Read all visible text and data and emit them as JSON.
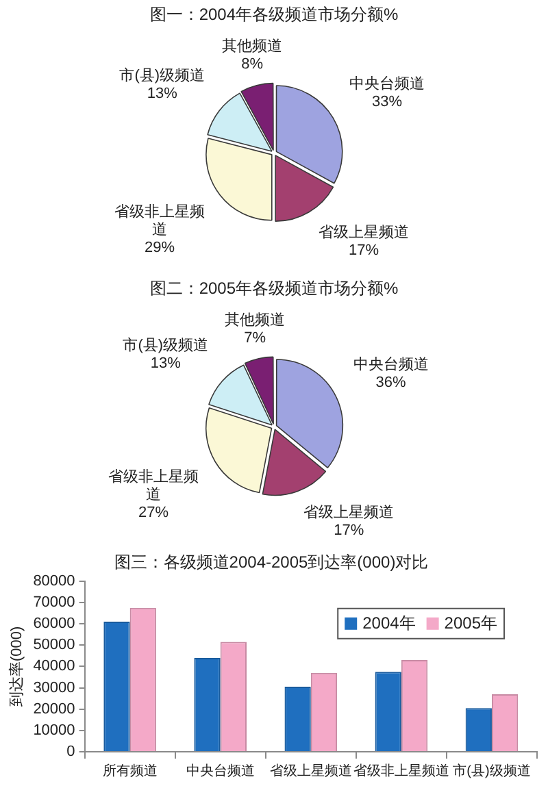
{
  "chart_data": [
    {
      "type": "pie",
      "title": "图一：2004年各级频道市场分额%",
      "categories": [
        "中央台频道",
        "省级上星频道",
        "省级非上星频道",
        "市(县)级频道",
        "其他频道"
      ],
      "values": [
        33,
        17,
        29,
        13,
        8
      ],
      "value_labels": [
        "33%",
        "17%",
        "29%",
        "13%",
        "8%"
      ],
      "colors": [
        "#9ea3e0",
        "#a3406f",
        "#fbf8d6",
        "#cdeef5",
        "#7a1f72"
      ]
    },
    {
      "type": "pie",
      "title": "图二：2005年各级频道市场分额%",
      "categories": [
        "中央台频道",
        "省级上星频道",
        "省级非上星频道",
        "市(县)级频道",
        "其他频道"
      ],
      "values": [
        36,
        17,
        27,
        13,
        7
      ],
      "value_labels": [
        "36%",
        "17%",
        "27%",
        "13%",
        "7%"
      ],
      "colors": [
        "#9ea3e0",
        "#a3406f",
        "#fbf8d6",
        "#cdeef5",
        "#7a1f72"
      ]
    },
    {
      "type": "bar",
      "title": "图三：各级频道2004-2005到达率(000)对比",
      "ylabel": "到达率(000)",
      "categories": [
        "所有频道",
        "中央台频道",
        "省级上星频道",
        "省级非上星频道",
        "市(县)级频道"
      ],
      "series": [
        {
          "name": "2004年",
          "color": "#1f6fbf",
          "values": [
            61000,
            44000,
            30500,
            37500,
            20500
          ]
        },
        {
          "name": "2005年",
          "color": "#f4a9c8",
          "values": [
            67500,
            51500,
            37000,
            43000,
            27000
          ]
        }
      ],
      "ylim": [
        0,
        80000
      ],
      "yticks": [
        0,
        10000,
        20000,
        30000,
        40000,
        50000,
        60000,
        70000,
        80000
      ],
      "legend": "top right"
    }
  ]
}
